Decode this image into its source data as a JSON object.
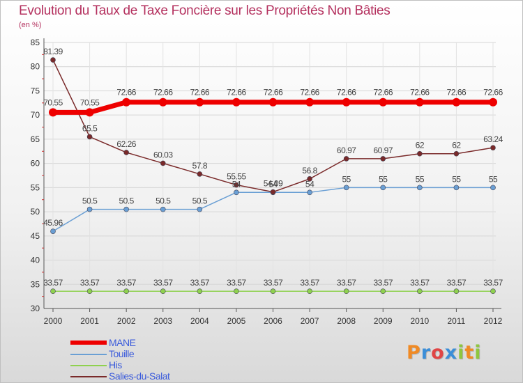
{
  "title": "Evolution du Taux de Taxe Foncière sur les Propriétés Non Bâties",
  "unit_label": "(en %)",
  "logo": {
    "text": "Proxiti",
    "colors": [
      "#f08a24",
      "#3b8ed8",
      "#e04545",
      "#3b8ed8",
      "#8ec63f",
      "#f08a24",
      "#8ec63f"
    ]
  },
  "chart_data": {
    "type": "line",
    "title": "Evolution du Taux de Taxe Foncière sur les Propriétés Non Bâties",
    "ylabel": "(en %)",
    "xlabel": "",
    "ylim": [
      30,
      85
    ],
    "yticks": [
      30,
      35,
      40,
      45,
      50,
      55,
      60,
      65,
      70,
      75,
      80,
      85
    ],
    "grid": true,
    "x": [
      "2000",
      "2001",
      "2002",
      "2003",
      "2004",
      "2005",
      "2006",
      "2007",
      "2008",
      "2009",
      "2010",
      "2011",
      "2012"
    ],
    "series": [
      {
        "name": "MANE",
        "color": "#ee0000",
        "emphasis": "thick",
        "values": [
          70.55,
          70.55,
          72.66,
          72.66,
          72.66,
          72.66,
          72.66,
          72.66,
          72.66,
          72.66,
          72.66,
          72.66,
          72.66
        ],
        "labels": [
          "70.55",
          "70.55",
          "72.66",
          "72.66",
          "72.66",
          "72.66",
          "72.66",
          "72.66",
          "72.66",
          "72.66",
          "72.66",
          "72.66",
          "72.66"
        ]
      },
      {
        "name": "Touille",
        "color": "#6a9fd4",
        "emphasis": "thin",
        "values": [
          45.96,
          50.5,
          50.5,
          50.5,
          50.5,
          54,
          54,
          54,
          55,
          55,
          55,
          55,
          55
        ],
        "labels": [
          "45.96",
          "50.5",
          "50.5",
          "50.5",
          "50.5",
          "54",
          "54",
          "54",
          "55",
          "55",
          "55",
          "55",
          "55"
        ]
      },
      {
        "name": "His",
        "color": "#8fd14f",
        "emphasis": "thin",
        "values": [
          33.57,
          33.57,
          33.57,
          33.57,
          33.57,
          33.57,
          33.57,
          33.57,
          33.57,
          33.57,
          33.57,
          33.57,
          33.57
        ],
        "labels": [
          "33.57",
          "33.57",
          "33.57",
          "33.57",
          "33.57",
          "33.57",
          "33.57",
          "33.57",
          "33.57",
          "33.57",
          "33.57",
          "33.57",
          "33.57"
        ]
      },
      {
        "name": "Salies-du-Salat",
        "color": "#7a2a2a",
        "emphasis": "thin",
        "values": [
          81.39,
          65.5,
          62.26,
          60.03,
          57.8,
          55.55,
          54.09,
          56.8,
          60.97,
          60.97,
          62,
          62,
          63.24
        ],
        "labels": [
          "81.39",
          "65.5",
          "62.26",
          "60.03",
          "57.8",
          "55.55",
          "54.09",
          "56.8",
          "60.97",
          "60.97",
          "62",
          "62",
          "63.24"
        ]
      }
    ]
  }
}
